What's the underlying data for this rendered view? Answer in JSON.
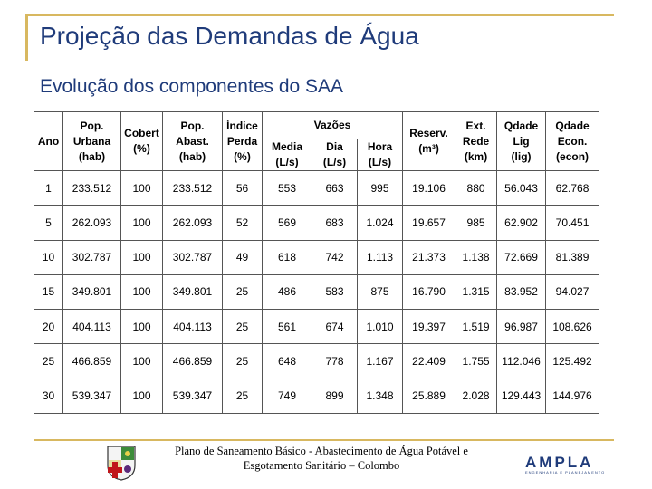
{
  "title": "Projeção das Demandas de Água",
  "subtitle": "Evolução dos componentes do SAA",
  "table": {
    "group_header": "Vazões",
    "headers": {
      "ano": "Ano",
      "pop_urbana": [
        "Pop.",
        "Urbana",
        "(hab)"
      ],
      "cobert": [
        "Cobert",
        "(%)"
      ],
      "pop_abast": [
        "Pop.",
        "Abast.",
        "(hab)"
      ],
      "indice_perda": [
        "Índice",
        "Perda",
        "(%)"
      ],
      "media": [
        "Media",
        "(L/s)"
      ],
      "dia": [
        "Dia",
        "(L/s)"
      ],
      "hora": [
        "Hora",
        "(L/s)"
      ],
      "reserv": [
        "Reserv.",
        "(m³)"
      ],
      "ext_rede": [
        "Ext.",
        "Rede",
        "(km)"
      ],
      "qdade_lig": [
        "Qdade",
        "Lig",
        "(lig)"
      ],
      "qdade_econ": [
        "Qdade",
        "Econ.",
        "(econ)"
      ]
    },
    "rows": [
      [
        "1",
        "233.512",
        "100",
        "233.512",
        "56",
        "553",
        "663",
        "995",
        "19.106",
        "880",
        "56.043",
        "62.768"
      ],
      [
        "5",
        "262.093",
        "100",
        "262.093",
        "52",
        "569",
        "683",
        "1.024",
        "19.657",
        "985",
        "62.902",
        "70.451"
      ],
      [
        "10",
        "302.787",
        "100",
        "302.787",
        "49",
        "618",
        "742",
        "1.113",
        "21.373",
        "1.138",
        "72.669",
        "81.389"
      ],
      [
        "15",
        "349.801",
        "100",
        "349.801",
        "25",
        "486",
        "583",
        "875",
        "16.790",
        "1.315",
        "83.952",
        "94.027"
      ],
      [
        "20",
        "404.113",
        "100",
        "404.113",
        "25",
        "561",
        "674",
        "1.010",
        "19.397",
        "1.519",
        "96.987",
        "108.626"
      ],
      [
        "25",
        "466.859",
        "100",
        "466.859",
        "25",
        "648",
        "778",
        "1.167",
        "22.409",
        "1.755",
        "112.046",
        "125.492"
      ],
      [
        "30",
        "539.347",
        "100",
        "539.347",
        "25",
        "749",
        "899",
        "1.348",
        "25.889",
        "2.028",
        "129.443",
        "144.976"
      ]
    ]
  },
  "footer": {
    "line1": "Plano de Saneamento Básico - Abastecimento de Água Potável e",
    "line2": "Esgotamento Sanitário – Colombo",
    "logo_word": "AMPLA",
    "logo_tagline": "ENGENHARIA E PLANEJAMENTO"
  },
  "colors": {
    "title": "#1f3b7a",
    "accent_line": "#d8b860"
  }
}
